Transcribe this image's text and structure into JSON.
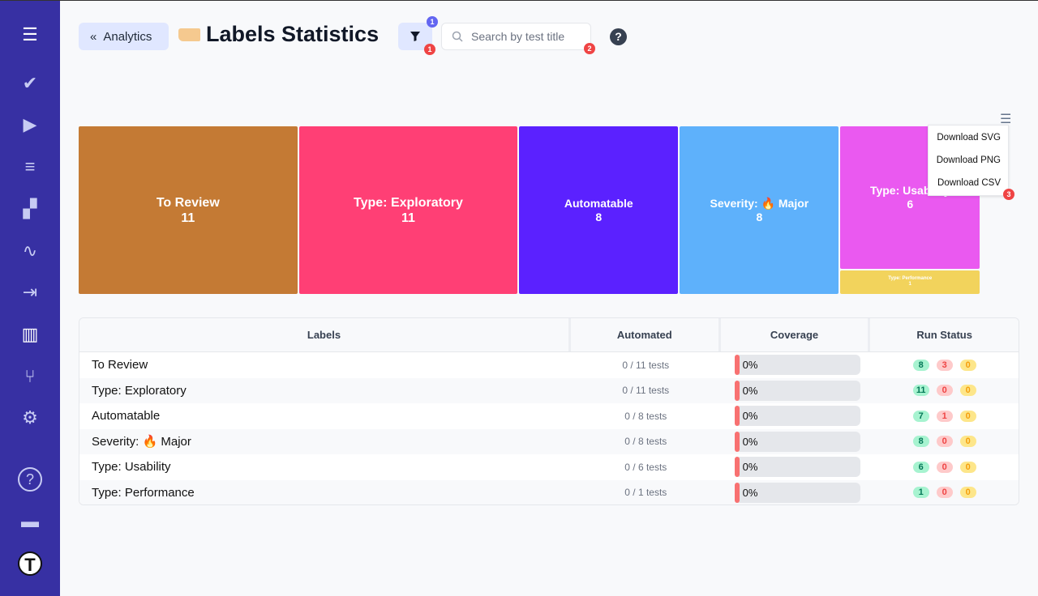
{
  "sidebar": {
    "items": [
      {
        "icon": "menu-icon",
        "glyph": "☰"
      },
      {
        "icon": "check-icon",
        "glyph": "✔"
      },
      {
        "icon": "play-icon",
        "glyph": "▶"
      },
      {
        "icon": "checklist-icon",
        "glyph": "≡"
      },
      {
        "icon": "steps-icon",
        "glyph": "▞"
      },
      {
        "icon": "pulse-icon",
        "glyph": "∿"
      },
      {
        "icon": "import-icon",
        "glyph": "⇥"
      },
      {
        "icon": "analytics-icon",
        "glyph": "▥"
      },
      {
        "icon": "branch-icon",
        "glyph": "⑂"
      },
      {
        "icon": "gear-icon",
        "glyph": "⚙"
      },
      {
        "icon": "help-icon",
        "glyph": "?"
      },
      {
        "icon": "folder-icon",
        "glyph": "▬"
      },
      {
        "icon": "logo-icon",
        "glyph": "T"
      }
    ]
  },
  "header": {
    "back_label": "Analytics",
    "title": "Labels Statistics",
    "filter_count": "1",
    "search_placeholder": "Search by test title",
    "help": "?",
    "hint_badges": [
      "1",
      "2",
      "3"
    ]
  },
  "chart_menu": {
    "items": [
      "Download SVG",
      "Download PNG",
      "Download CSV"
    ]
  },
  "chart_data": {
    "type": "treemap",
    "items": [
      {
        "label": "To Review",
        "value": 11,
        "color": "#c47a34"
      },
      {
        "label": "Type: Exploratory",
        "value": 11,
        "color": "#ff3f75"
      },
      {
        "label": "Automatable",
        "value": 8,
        "color": "#5b21ff"
      },
      {
        "label": "Severity: 🔥 Major",
        "value": 8,
        "color": "#5eb1fb"
      },
      {
        "label": "Type: Usability",
        "value": 6,
        "color": "#ea59f0"
      },
      {
        "label": "Type: Performance",
        "value": 1,
        "color": "#f2d35c"
      }
    ]
  },
  "table": {
    "headers": [
      "Labels",
      "Automated",
      "Coverage",
      "Run Status"
    ],
    "rows": [
      {
        "label": "To Review",
        "automated": "0 / 11 tests",
        "coverage": "0%",
        "passed": "8",
        "failed": "3",
        "skipped": "0"
      },
      {
        "label": "Type: Exploratory",
        "automated": "0 / 11 tests",
        "coverage": "0%",
        "passed": "11",
        "failed": "0",
        "skipped": "0"
      },
      {
        "label": "Automatable",
        "automated": "0 / 8 tests",
        "coverage": "0%",
        "passed": "7",
        "failed": "1",
        "skipped": "0"
      },
      {
        "label": "Severity: 🔥 Major",
        "automated": "0 / 8 tests",
        "coverage": "0%",
        "passed": "8",
        "failed": "0",
        "skipped": "0"
      },
      {
        "label": "Type: Usability",
        "automated": "0 / 6 tests",
        "coverage": "0%",
        "passed": "6",
        "failed": "0",
        "skipped": "0"
      },
      {
        "label": "Type: Performance",
        "automated": "0 / 1 tests",
        "coverage": "0%",
        "passed": "1",
        "failed": "0",
        "skipped": "0"
      }
    ]
  }
}
